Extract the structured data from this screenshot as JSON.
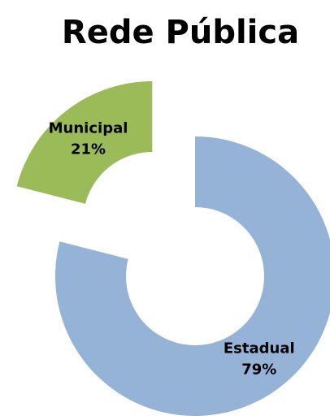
{
  "chart_data": {
    "type": "donut",
    "title": "Rede Pública",
    "categories": [
      "Estadual",
      "Municipal"
    ],
    "values": [
      79,
      21
    ],
    "value_labels": [
      "79%",
      "21%"
    ],
    "colors": [
      "#95b3d7",
      "#9bbb59"
    ]
  }
}
